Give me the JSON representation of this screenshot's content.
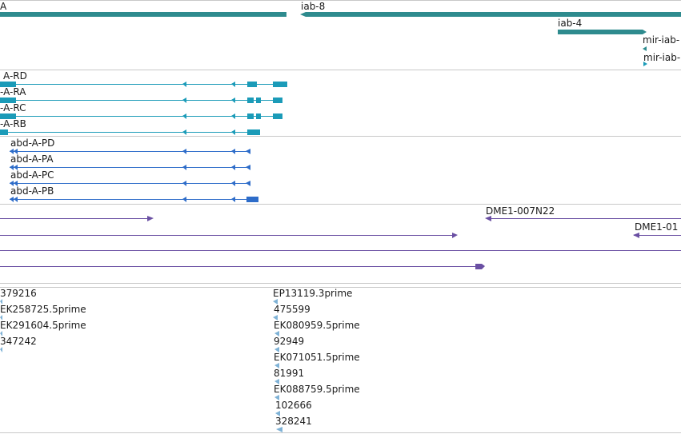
{
  "colors": {
    "track_gene": "#2e8b8e",
    "track_transcript_teal": "#1b9bb8",
    "track_transcript_blue": "#2d6cc9",
    "track_purple": "#6a4fa3",
    "track_est": "#7fb2d6",
    "divider": "#c8c8c8"
  },
  "gene_track": {
    "labels": {
      "gene_a": "A",
      "iab8": "iab-8",
      "iab4": "iab-4",
      "mir1": "mir-iab-",
      "mir2": "mir-iab-"
    }
  },
  "transcripts_teal": {
    "labels": [
      "A-RD",
      "-A-RA",
      "-A-RC",
      "-A-RB"
    ]
  },
  "transcripts_blue": {
    "labels": [
      "abd-A-PD",
      "abd-A-PA",
      "abd-A-PC",
      "abd-A-PB"
    ]
  },
  "purple_track": {
    "labels": {
      "dme1": "DME1-007N22",
      "dme2": "DME1-01"
    }
  },
  "est_track": {
    "left_labels": [
      "379216",
      "EK258725.5prime",
      "EK291604.5prime",
      "347242"
    ],
    "right_labels": [
      "EP13119.3prime",
      "475599",
      "EK080959.5prime",
      "92949",
      "EK071051.5prime",
      "81991",
      "EK088759.5prime",
      "102666",
      "328241"
    ]
  }
}
